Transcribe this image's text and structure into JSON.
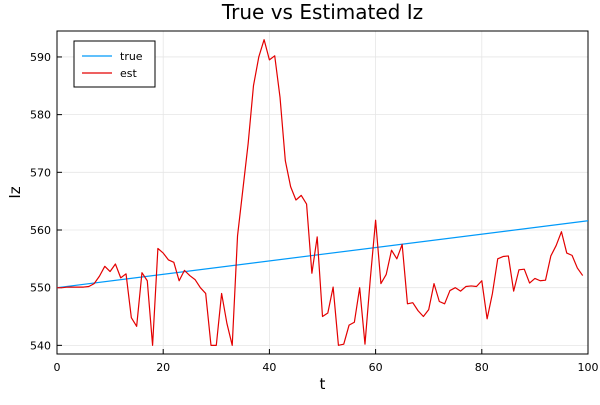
{
  "chart_data": {
    "type": "line",
    "title": "True vs Estimated Iz",
    "xlabel": "t",
    "ylabel": "Iz",
    "xlim": [
      0,
      100
    ],
    "ylim": [
      538.5,
      594.5
    ],
    "xticks": [
      0,
      20,
      40,
      60,
      80,
      100
    ],
    "yticks": [
      540,
      550,
      560,
      570,
      580,
      590
    ],
    "grid": true,
    "legend": "top-left",
    "series": [
      {
        "name": "true",
        "color": "#009AFA",
        "x": [
          0,
          100
        ],
        "y": [
          550.0,
          561.6
        ]
      },
      {
        "name": "est",
        "color": "#E30000",
        "x": [
          0,
          1,
          2,
          3,
          4,
          5,
          6,
          7,
          8,
          9,
          10,
          11,
          12,
          13,
          14,
          15,
          16,
          17,
          18,
          19,
          20,
          21,
          22,
          23,
          24,
          25,
          26,
          27,
          28,
          29,
          30,
          31,
          32,
          33,
          34,
          35,
          36,
          37,
          38,
          39,
          40,
          41,
          42,
          43,
          44,
          45,
          46,
          47,
          48,
          49,
          50,
          51,
          52,
          53,
          54,
          55,
          56,
          57,
          58,
          59,
          60,
          61,
          62,
          63,
          64,
          65,
          66,
          67,
          68,
          69,
          70,
          71,
          72,
          73,
          74,
          75,
          76,
          77,
          78,
          79,
          80,
          81,
          82,
          83,
          84,
          85,
          86,
          87,
          88,
          89,
          90,
          91,
          92,
          93,
          94,
          95,
          96,
          97,
          98,
          99
        ],
        "y": [
          550.0,
          550.0,
          550.1,
          550.1,
          550.1,
          550.1,
          550.2,
          550.7,
          552.0,
          553.7,
          552.8,
          554.1,
          551.7,
          552.4,
          544.8,
          543.3,
          552.6,
          551.2,
          540.0,
          556.8,
          556.0,
          554.8,
          554.4,
          551.2,
          553.0,
          552.1,
          551.4,
          550.0,
          549.0,
          540.0,
          540.0,
          549.0,
          543.8,
          540.0,
          559.0,
          567.0,
          575.0,
          585.0,
          590.0,
          593.0,
          589.5,
          590.2,
          583.0,
          572.0,
          567.5,
          565.2,
          566.0,
          564.5,
          552.5,
          558.8,
          545.0,
          545.6,
          550.1,
          540.0,
          540.2,
          543.5,
          544.0,
          550.0,
          540.2,
          551.5,
          561.7,
          550.7,
          552.3,
          556.5,
          555.0,
          557.5,
          547.2,
          547.4,
          546.0,
          545.0,
          546.2,
          550.7,
          547.6,
          547.2,
          549.5,
          550.0,
          549.4,
          550.2,
          550.3,
          550.2,
          551.2,
          544.6,
          549.0,
          555.0,
          555.4,
          555.5,
          549.4,
          553.1,
          553.2,
          550.8,
          551.6,
          551.2,
          551.3,
          555.5,
          557.3,
          559.7,
          556.0,
          555.6,
          553.4,
          552.1
        ]
      }
    ]
  }
}
